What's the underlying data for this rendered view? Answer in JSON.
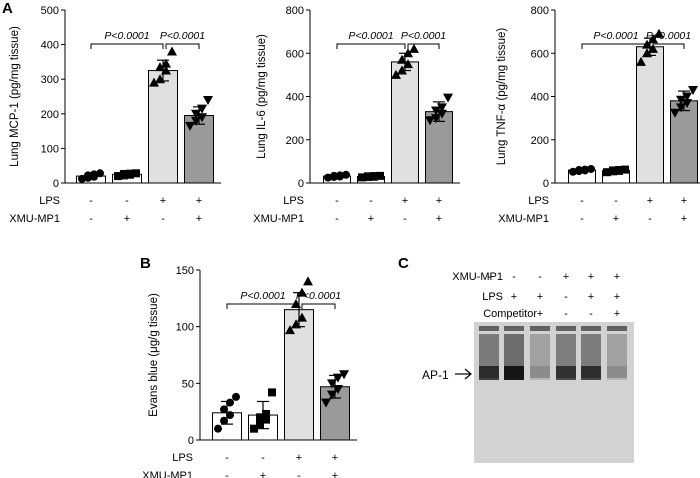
{
  "panel_letters": [
    "A",
    "B",
    "C"
  ],
  "chart_data": [
    {
      "type": "bar",
      "ylabel": "Lung MCP-1 (pg/mg tissue)",
      "ylim": [
        0,
        500
      ],
      "yticks": [
        "0",
        "100",
        "200",
        "300",
        "400",
        "500"
      ],
      "categories": [
        "1",
        "2",
        "3",
        "4"
      ],
      "values": [
        20,
        25,
        325,
        195
      ],
      "errors": [
        6,
        5,
        30,
        25
      ],
      "points": [
        [
          12,
          15,
          18,
          22,
          25,
          28
        ],
        [
          20,
          22,
          24,
          26,
          27,
          28
        ],
        [
          290,
          300,
          325,
          335,
          345,
          380
        ],
        [
          165,
          180,
          190,
          200,
          215,
          240
        ]
      ],
      "markers": [
        "circle",
        "square",
        "triangle-up",
        "triangle-down"
      ],
      "bar_colors": [
        "#ffffff",
        "#ffffff",
        "#e0e0e0",
        "#9a9a9a"
      ],
      "rows": [
        {
          "label": "LPS",
          "signs": [
            "-",
            "-",
            "+",
            "+"
          ]
        },
        {
          "label": "XMU-MP1",
          "signs": [
            "-",
            "+",
            "-",
            "+"
          ]
        }
      ],
      "annotations": [
        {
          "text": "P<0.0001",
          "from": 0,
          "to": 2
        },
        {
          "text": "P<0.0001",
          "from": 2,
          "to": 3
        }
      ],
      "grid": false
    },
    {
      "type": "bar",
      "ylabel": "Lung IL-6 (pg/mg tissue)",
      "ylim": [
        0,
        800
      ],
      "yticks": [
        "0",
        "200",
        "400",
        "600",
        "800"
      ],
      "categories": [
        "1",
        "2",
        "3",
        "4"
      ],
      "values": [
        32,
        30,
        560,
        330
      ],
      "errors": [
        5,
        4,
        40,
        45
      ],
      "points": [
        [
          25,
          28,
          30,
          33,
          35,
          38
        ],
        [
          26,
          28,
          29,
          31,
          32,
          33
        ],
        [
          500,
          520,
          550,
          570,
          600,
          620
        ],
        [
          290,
          300,
          320,
          335,
          350,
          395
        ]
      ],
      "markers": [
        "circle",
        "square",
        "triangle-up",
        "triangle-down"
      ],
      "bar_colors": [
        "#ffffff",
        "#ffffff",
        "#e0e0e0",
        "#9a9a9a"
      ],
      "rows": [
        {
          "label": "LPS",
          "signs": [
            "-",
            "-",
            "+",
            "+"
          ]
        },
        {
          "label": "XMU-MP1",
          "signs": [
            "-",
            "+",
            "-",
            "+"
          ]
        }
      ],
      "annotations": [
        {
          "text": "P<0.0001",
          "from": 0,
          "to": 2
        },
        {
          "text": "P<0.0001",
          "from": 2,
          "to": 3
        }
      ],
      "grid": false
    },
    {
      "type": "bar",
      "ylabel": "Lung TNF-α (pg/mg tissue)",
      "ylim": [
        0,
        800
      ],
      "yticks": [
        "0",
        "200",
        "400",
        "600",
        "800"
      ],
      "categories": [
        "1",
        "2",
        "3",
        "4"
      ],
      "values": [
        60,
        58,
        630,
        380
      ],
      "errors": [
        8,
        6,
        40,
        45
      ],
      "points": [
        [
          52,
          55,
          58,
          60,
          62,
          65
        ],
        [
          50,
          54,
          56,
          58,
          60,
          62
        ],
        [
          560,
          600,
          620,
          640,
          665,
          690
        ],
        [
          325,
          350,
          370,
          385,
          400,
          430
        ]
      ],
      "markers": [
        "circle",
        "square",
        "triangle-up",
        "triangle-down"
      ],
      "bar_colors": [
        "#ffffff",
        "#ffffff",
        "#e0e0e0",
        "#9a9a9a"
      ],
      "rows": [
        {
          "label": "LPS",
          "signs": [
            "-",
            "-",
            "+",
            "+"
          ]
        },
        {
          "label": "XMU-MP1",
          "signs": [
            "-",
            "+",
            "-",
            "+"
          ]
        }
      ],
      "annotations": [
        {
          "text": "P<0.0001",
          "from": 0,
          "to": 2
        },
        {
          "text": "P<0.0001",
          "from": 2,
          "to": 3
        }
      ],
      "grid": false
    },
    {
      "type": "bar",
      "ylabel": "Evans blue (μg/g tissue)",
      "ylim": [
        0,
        150
      ],
      "yticks": [
        "0",
        "50",
        "100",
        "150"
      ],
      "categories": [
        "1",
        "2",
        "3",
        "4"
      ],
      "values": [
        24,
        22,
        115,
        47
      ],
      "errors": [
        10,
        12,
        15,
        10
      ],
      "points": [
        [
          10,
          17,
          22,
          27,
          33,
          38
        ],
        [
          10,
          14,
          18,
          20,
          23,
          42
        ],
        [
          97,
          102,
          108,
          120,
          130,
          140
        ],
        [
          33,
          40,
          45,
          50,
          55,
          58
        ]
      ],
      "markers": [
        "circle",
        "square",
        "triangle-up",
        "triangle-down"
      ],
      "bar_colors": [
        "#ffffff",
        "#ffffff",
        "#e0e0e0",
        "#9a9a9a"
      ],
      "rows": [
        {
          "label": "LPS",
          "signs": [
            "-",
            "-",
            "+",
            "+"
          ]
        },
        {
          "label": "XMU-MP1",
          "signs": [
            "-",
            "+",
            "-",
            "+"
          ]
        }
      ],
      "annotations": [
        {
          "text": "P<0.0001",
          "from": 0,
          "to": 2
        },
        {
          "text": "P<0.0001",
          "from": 2,
          "to": 3
        }
      ],
      "grid": false
    }
  ],
  "gel": {
    "rows": [
      {
        "label": "XMU-MP1",
        "signs": [
          "-",
          "-",
          "-",
          "+",
          "+",
          "+"
        ]
      },
      {
        "label": "LPS",
        "signs": [
          "-",
          "+",
          "+",
          "-",
          "+",
          "+"
        ]
      },
      {
        "label": "Competitor",
        "signs": [
          "-",
          "-",
          "+",
          "-",
          "-",
          "+"
        ]
      }
    ],
    "band_label": "AP-1",
    "band_intensity": [
      0.75,
      0.95,
      0.15,
      0.7,
      0.72,
      0.15
    ]
  }
}
